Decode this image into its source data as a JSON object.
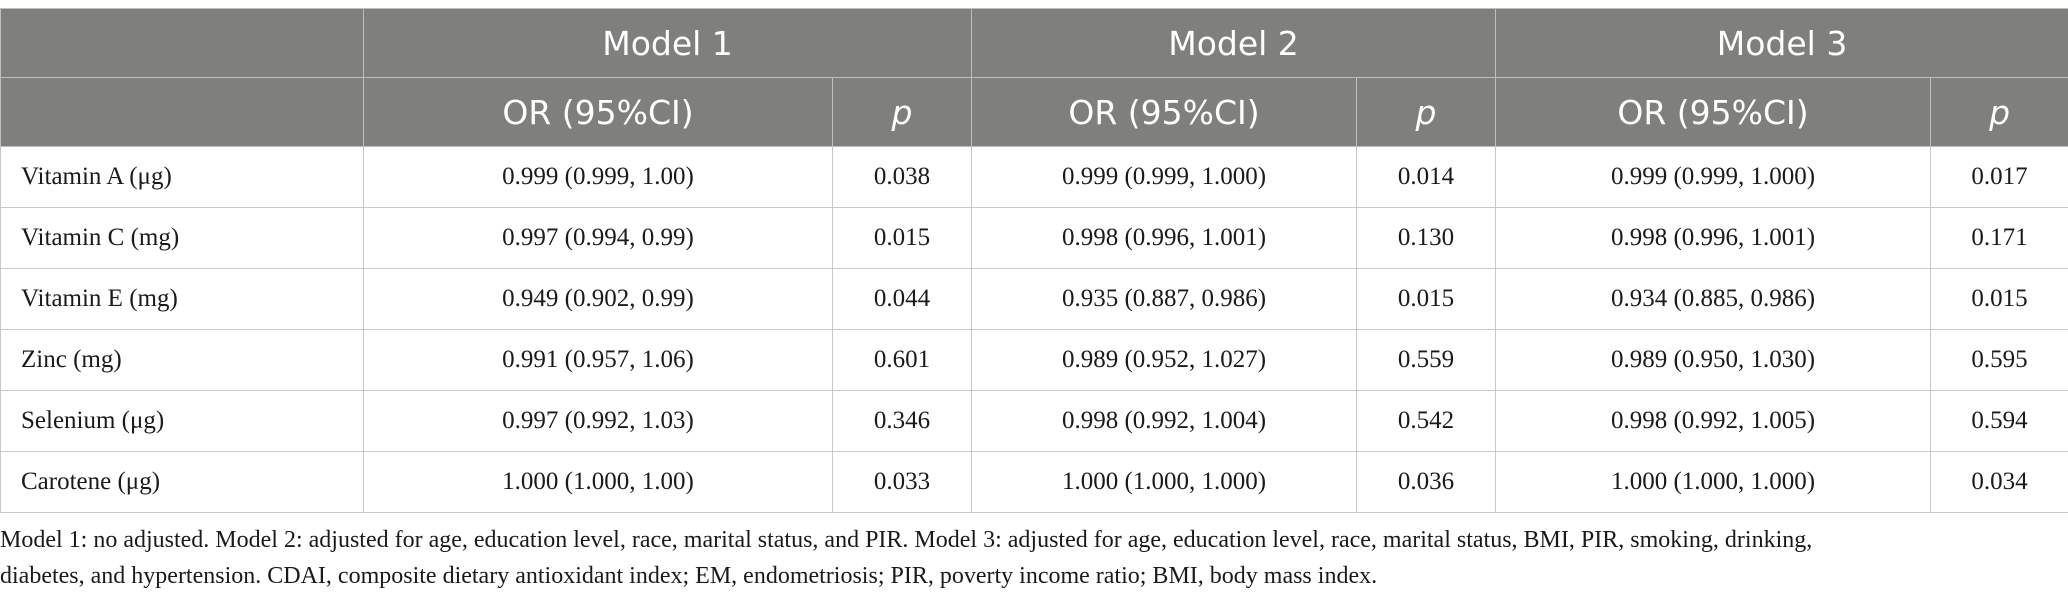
{
  "table": {
    "header": {
      "models": [
        "Model 1",
        "Model 2",
        "Model 3"
      ],
      "or_label": "OR (95%CI)",
      "p_label": "p"
    },
    "rows": [
      {
        "label": "Vitamin A (μg)",
        "m1_or": "0.999 (0.999, 1.00)",
        "m1_p": "0.038",
        "m2_or": "0.999 (0.999, 1.000)",
        "m2_p": "0.014",
        "m3_or": "0.999 (0.999, 1.000)",
        "m3_p": "0.017"
      },
      {
        "label": "Vitamin C (mg)",
        "m1_or": "0.997 (0.994, 0.99)",
        "m1_p": "0.015",
        "m2_or": "0.998 (0.996, 1.001)",
        "m2_p": "0.130",
        "m3_or": "0.998 (0.996, 1.001)",
        "m3_p": "0.171"
      },
      {
        "label": "Vitamin E (mg)",
        "m1_or": "0.949 (0.902, 0.99)",
        "m1_p": "0.044",
        "m2_or": "0.935 (0.887, 0.986)",
        "m2_p": "0.015",
        "m3_or": "0.934 (0.885, 0.986)",
        "m3_p": "0.015"
      },
      {
        "label": "Zinc (mg)",
        "m1_or": "0.991 (0.957, 1.06)",
        "m1_p": "0.601",
        "m2_or": "0.989 (0.952, 1.027)",
        "m2_p": "0.559",
        "m3_or": "0.989 (0.950, 1.030)",
        "m3_p": "0.595"
      },
      {
        "label": "Selenium (μg)",
        "m1_or": "0.997 (0.992, 1.03)",
        "m1_p": "0.346",
        "m2_or": "0.998 (0.992, 1.004)",
        "m2_p": "0.542",
        "m3_or": "0.998 (0.992, 1.005)",
        "m3_p": "0.594"
      },
      {
        "label": "Carotene (μg)",
        "m1_or": "1.000 (1.000, 1.00)",
        "m1_p": "0.033",
        "m2_or": "1.000 (1.000, 1.000)",
        "m2_p": "0.036",
        "m3_or": "1.000 (1.000, 1.000)",
        "m3_p": "0.034"
      }
    ]
  },
  "footnote": {
    "line1": "Model 1: no adjusted. Model 2: adjusted for age, education level, race, marital status, and PIR. Model 3: adjusted for age, education level, race, marital status, BMI, PIR, smoking, drinking,",
    "line2": "diabetes, and hypertension. CDAI, composite dietary antioxidant index; EM, endometriosis; PIR, poverty income ratio; BMI, body mass index."
  },
  "colors": {
    "header_bg": "#7f7f7d",
    "header_text": "#ffffff",
    "grid": "#c8c8c8"
  }
}
